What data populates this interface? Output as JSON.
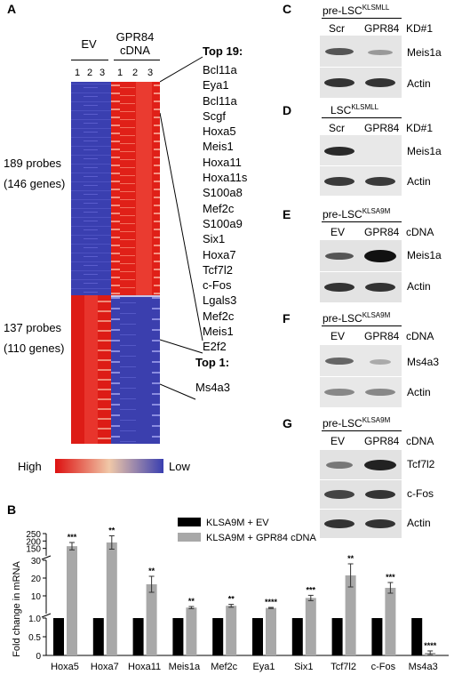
{
  "figure": {
    "panel_a": {
      "letter": "A",
      "groups": [
        {
          "label": "EV",
          "lanes": [
            "1",
            "2",
            "3"
          ]
        },
        {
          "label_line1": "GPR84",
          "label_line2": "cDNA",
          "lanes": [
            "1",
            "2",
            "3"
          ]
        }
      ],
      "upper_cluster": {
        "line1": "189 probes",
        "line2": "(146 genes)"
      },
      "lower_cluster": {
        "line1": "137 probes",
        "line2": "(110 genes)"
      },
      "top_up_title": "Top 19:",
      "top_up_genes": [
        "Bcl11a",
        "Eya1",
        "Bcl11a",
        "Scgf",
        "Hoxa5",
        "Meis1",
        "Hoxa11",
        "Hoxa11s",
        "S100a8",
        "Mef2c",
        "S100a9",
        "Six1",
        "Hoxa7",
        "Tcf7l2",
        "c-Fos",
        "Lgals3",
        "Mef2c",
        "Meis1",
        "E2f2"
      ],
      "top_down_title": "Top 1:",
      "top_down_genes": [
        "Ms4a3"
      ],
      "scale": {
        "high": "High",
        "low": "Low"
      }
    },
    "panel_c": {
      "letter": "C",
      "title": "pre-LSC",
      "superscript": "KLSMLL",
      "lane_labels": [
        "Scr",
        "GPR84",
        "KD#1"
      ],
      "rows": [
        "Meis1a",
        "Actin"
      ]
    },
    "panel_d": {
      "letter": "D",
      "title": "LSC",
      "superscript": "KLSMLL",
      "lane_labels": [
        "Scr",
        "GPR84",
        "KD#1"
      ],
      "rows": [
        "Meis1a",
        "Actin"
      ]
    },
    "panel_e": {
      "letter": "E",
      "title": "pre-LSC",
      "superscript": "KLSA9M",
      "lane_labels": [
        "EV",
        "GPR84",
        "cDNA"
      ],
      "rows": [
        "Meis1a",
        "Actin"
      ]
    },
    "panel_f": {
      "letter": "F",
      "title": "pre-LSC",
      "superscript": "KLSA9M",
      "lane_labels": [
        "EV",
        "GPR84",
        "cDNA"
      ],
      "rows": [
        "Ms4a3",
        "Actin"
      ]
    },
    "panel_g": {
      "letter": "G",
      "title": "pre-LSC",
      "superscript": "KLSA9M",
      "lane_labels": [
        "EV",
        "GPR84",
        "cDNA"
      ],
      "rows": [
        "Tcf7l2",
        "c-Fos",
        "Actin"
      ]
    },
    "panel_b": {
      "letter": "B"
    }
  },
  "chart_data": {
    "type": "bar",
    "ylabel": "Fold change in mRNA",
    "categories": [
      "Hoxa5",
      "Hoxa7",
      "Hoxa11",
      "Meis1a",
      "Mef2c",
      "Eya1",
      "Six1",
      "Tcf7l2",
      "c-Fos",
      "Ms4a3"
    ],
    "series": [
      {
        "name": "KLSA9M + EV",
        "color": "#000000",
        "values": [
          1,
          1,
          1,
          1,
          1,
          1,
          1,
          1,
          1,
          1
        ]
      },
      {
        "name": "KLSA9M + GPR84 cDNA",
        "color": "#a8a8a8",
        "values": [
          165,
          190,
          16.5,
          3.4,
          4.4,
          3.2,
          8.8,
          21.5,
          14.5,
          0.07
        ],
        "errors": [
          25,
          45,
          4.5,
          0.6,
          0.8,
          0.3,
          1.5,
          6.5,
          3.0,
          0.05
        ]
      }
    ],
    "significance": [
      "***",
      "**",
      "**",
      "**",
      "**",
      "****",
      "***",
      "**",
      "***",
      "****"
    ],
    "broken_axis": [
      {
        "range": [
          0,
          1.0
        ],
        "ticks": [
          "0",
          "0.5",
          "1.0"
        ]
      },
      {
        "range": [
          0,
          30
        ],
        "ticks": [
          "10",
          "20",
          "30"
        ]
      },
      {
        "range": [
          100,
          250
        ],
        "ticks": [
          "150",
          "200",
          "250"
        ]
      }
    ]
  }
}
